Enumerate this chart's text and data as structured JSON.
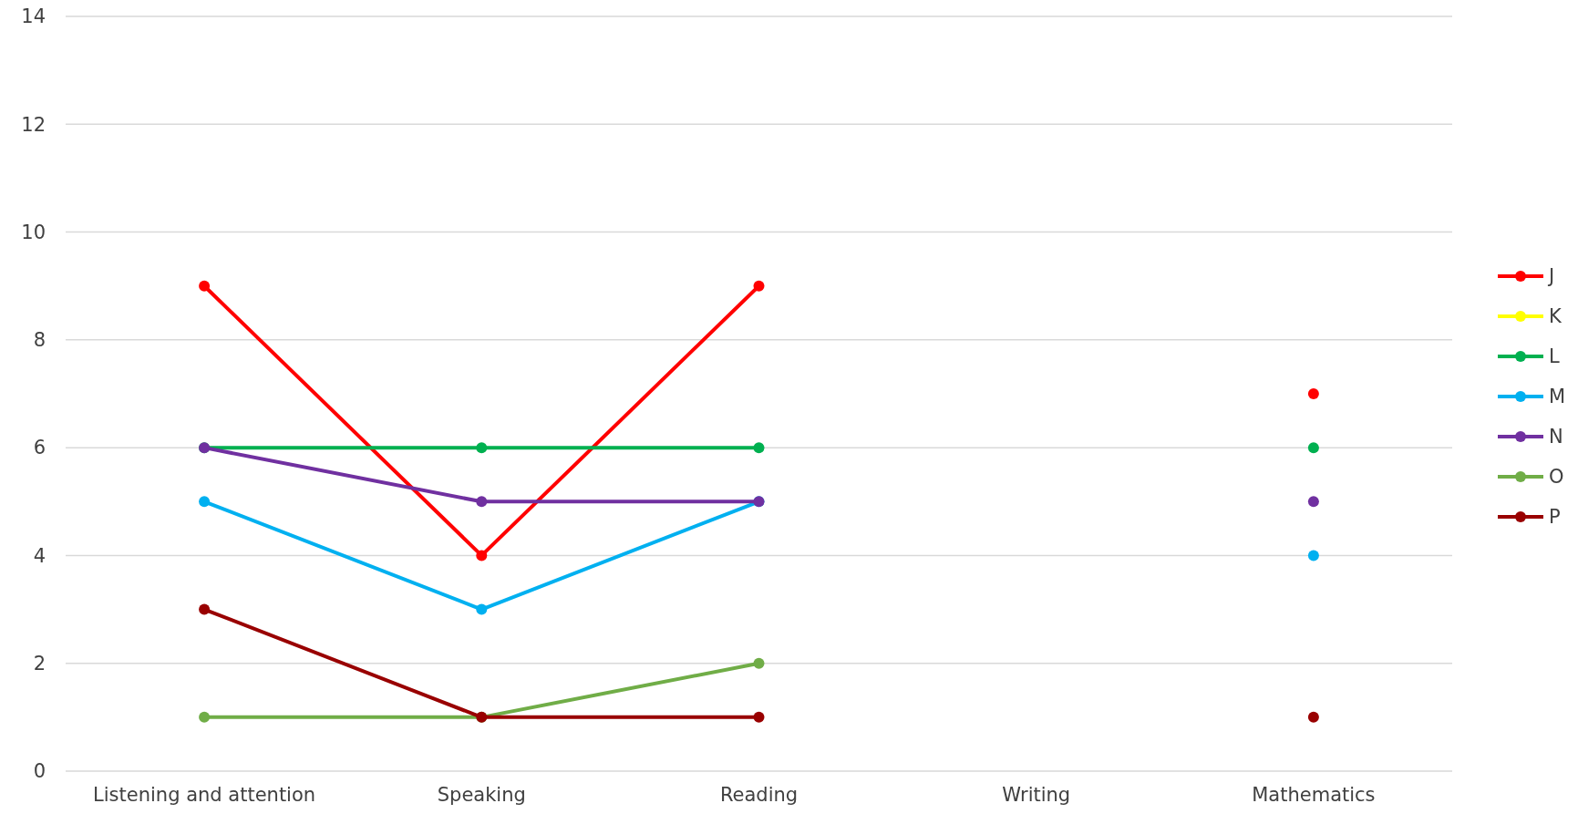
{
  "chart_data": {
    "type": "line",
    "categories": [
      "Listening and attention",
      "Speaking",
      "Reading",
      "Writing",
      "Mathematics"
    ],
    "series": [
      {
        "name": "J",
        "color": "#ff0000",
        "values": [
          9,
          4,
          9,
          null,
          7
        ]
      },
      {
        "name": "K",
        "color": "#ffff00",
        "values": [
          null,
          null,
          null,
          null,
          null
        ]
      },
      {
        "name": "L",
        "color": "#00b050",
        "values": [
          6,
          6,
          6,
          null,
          6
        ]
      },
      {
        "name": "M",
        "color": "#00b0f0",
        "values": [
          5,
          3,
          5,
          null,
          4
        ]
      },
      {
        "name": "N",
        "color": "#7030a0",
        "values": [
          6,
          5,
          5,
          null,
          5
        ]
      },
      {
        "name": "O",
        "color": "#70ad47",
        "values": [
          1,
          1,
          2,
          null,
          null
        ]
      },
      {
        "name": "P",
        "color": "#990000",
        "values": [
          3,
          1,
          1,
          null,
          1
        ]
      }
    ],
    "ylim": [
      0,
      14
    ],
    "yticks": [
      0,
      2,
      4,
      6,
      8,
      10,
      12,
      14
    ],
    "grid": "y",
    "legend": "right",
    "marker": "circle",
    "line_style": "solid"
  }
}
